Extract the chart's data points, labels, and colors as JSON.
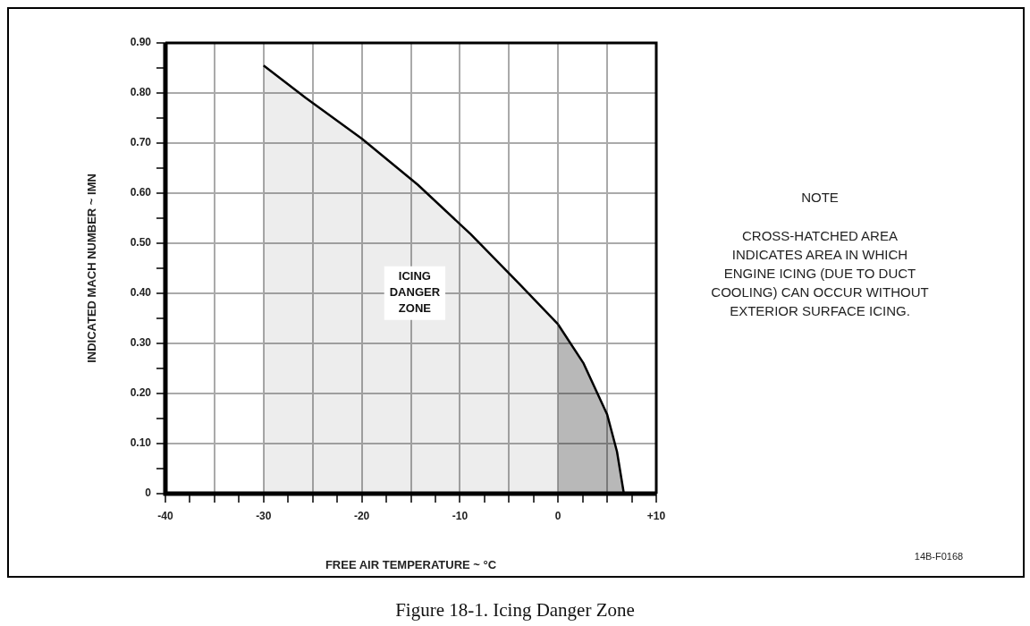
{
  "chart_data": {
    "type": "area",
    "title": "Figure 18-1.  Icing Danger Zone",
    "xlabel": "FREE AIR TEMPERATURE ~ °C",
    "ylabel": "INDICATED MACH NUMBER ~ IMN",
    "series": [
      {
        "color": "#000000",
        "x": [
          -30,
          -25.7,
          -20,
          -14.3,
          -8.9,
          -4.0,
          0
        ],
        "values": [
          0.855,
          0.79,
          0.709,
          0.617,
          0.518,
          0.42,
          0.338
        ]
      },
      {
        "color": "#000000",
        "x": [
          0,
          2.6,
          5.0,
          6.0,
          6.7
        ],
        "values": [
          0.338,
          0.26,
          0.158,
          0.084,
          0
        ]
      }
    ],
    "xlim": [
      -40,
      10
    ],
    "ylim": [
      0,
      0.9
    ],
    "xticks": [
      -40,
      {
        "value": -37.5,
        "label": null
      },
      {
        "value": -35,
        "label": null
      },
      {
        "value": -32.5,
        "label": null
      },
      -30,
      {
        "value": -27.5,
        "label": null
      },
      {
        "value": -25,
        "label": null
      },
      {
        "value": -22.5,
        "label": null
      },
      -20,
      {
        "value": -17.5,
        "label": null
      },
      {
        "value": -15,
        "label": null
      },
      {
        "value": -12.5,
        "label": null
      },
      -10,
      {
        "value": -7.5,
        "label": null
      },
      {
        "value": -5,
        "label": null
      },
      {
        "value": -2.5,
        "label": null
      },
      0,
      {
        "value": 2.5,
        "label": null
      },
      {
        "value": 5,
        "label": null
      },
      {
        "value": 7.5,
        "label": null
      },
      {
        "value": 10,
        "label": "+10"
      }
    ],
    "yticks": [
      0,
      {
        "value": 0.05,
        "label": null
      },
      {
        "value": 0.1,
        "label": "0.10"
      },
      {
        "value": 0.15,
        "label": null
      },
      {
        "value": 0.2,
        "label": "0.20"
      },
      {
        "value": 0.25,
        "label": null
      },
      {
        "value": 0.3,
        "label": "0.30"
      },
      {
        "value": 0.35,
        "label": null
      },
      {
        "value": 0.4,
        "label": "0.40"
      },
      {
        "value": 0.45,
        "label": null
      },
      {
        "value": 0.5,
        "label": "0.50"
      },
      {
        "value": 0.55,
        "label": null
      },
      {
        "value": 0.6,
        "label": "0.60"
      },
      {
        "value": 0.65,
        "label": null
      },
      {
        "value": 0.7,
        "label": "0.70"
      },
      {
        "value": 0.75,
        "label": null
      },
      {
        "value": 0.8,
        "label": "0.80"
      },
      {
        "value": 0.85,
        "label": null
      },
      {
        "value": 0.9,
        "label": "0.90"
      }
    ],
    "grid": true,
    "legend": false,
    "marker": "none",
    "annotations": [
      "ICING DANGER ZONE",
      "NOTE",
      "CROSS-HATCHED AREA INDICATES AREA IN WHICH ENGINE ICING (DUE TO DUCT COOLING) CAN OCCUR WITHOUT EXTERIOR SURFACE ICING.",
      "14B-F0168"
    ]
  }
}
